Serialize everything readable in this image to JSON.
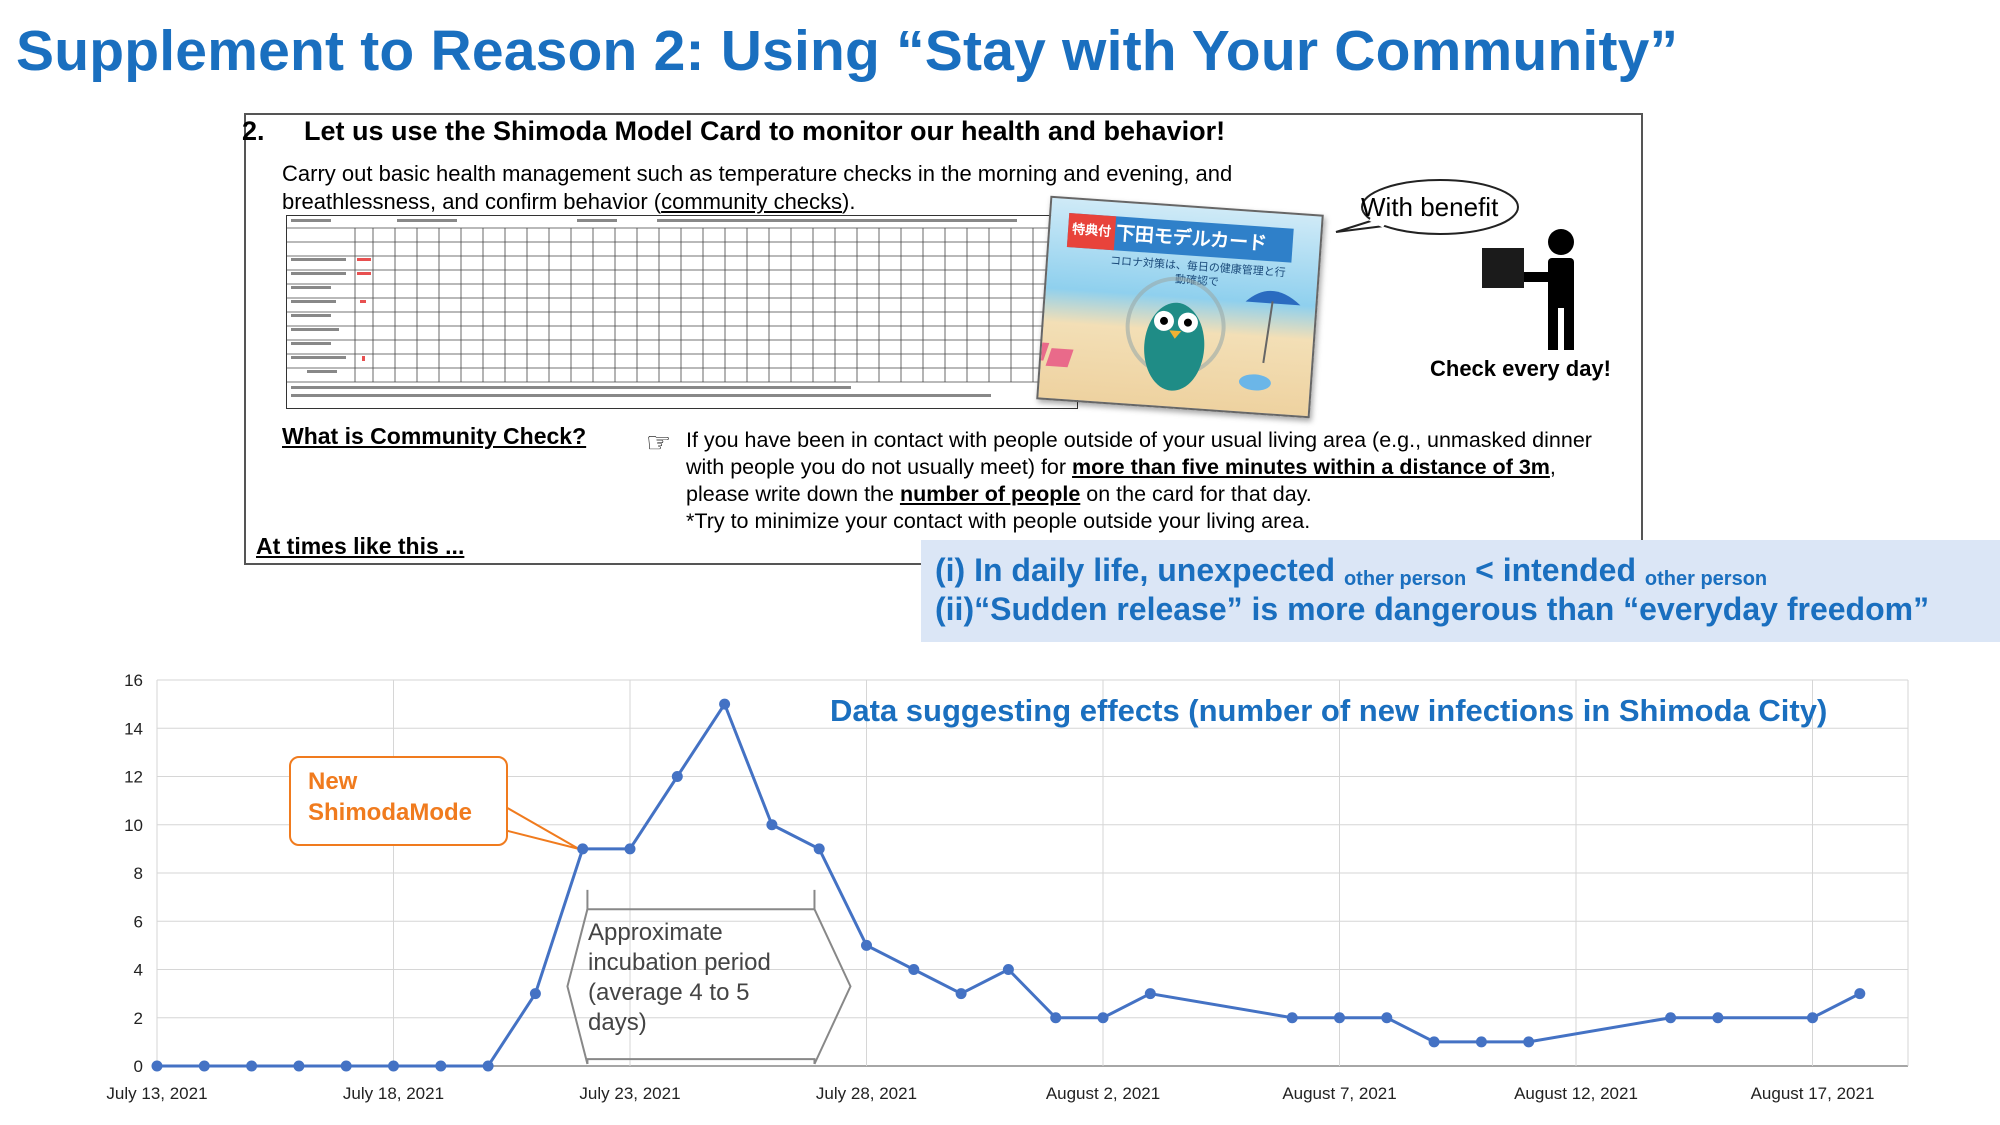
{
  "title": "Supplement to Reason 2: Using “Stay with Your Community”",
  "panel": {
    "heading_num": "2.",
    "heading": "Let us use the Shimoda Model Card to monitor our health and behavior!",
    "intro_part1": "Carry out basic health management such as temperature checks in the morning and evening, and breathlessness, and confirm behavior (",
    "intro_link": "community checks",
    "intro_part2": ").",
    "card_badge": "特典付",
    "card_title": "下田モデルカード",
    "card_sub": "コロナ対策は、毎日の健康管理と行動確認で",
    "bubble": "With benefit",
    "check_label": "Check every day!",
    "what_label": "What is Community Check?",
    "hand_icon": "pointing-hand-icon",
    "explain_1": "If you have been in contact with people outside of your usual living area (e.g., unmasked dinner with people you do not usually meet) for ",
    "explain_b1": "more than five minutes within a distance of 3m",
    "explain_2": ", please write down the ",
    "explain_b2": "number of people",
    "explain_3": " on the card for that day.",
    "explain_4": "*Try to minimize your contact with people outside your living area.",
    "times_label": "At times like this ..."
  },
  "notes": {
    "n1_a": "(i) In daily life, unexpected ",
    "n1_sub1": "other person",
    "n1_b": " < intended ",
    "n1_sub2": "other person",
    "n2": "(ii)“Sudden release” is more dangerous than “everyday freedom”"
  },
  "callout": "New ShimodaMode",
  "incubation": "Approximate incubation period (average 4 to 5 days)",
  "colors": {
    "accent": "#1a6fbf",
    "series": "#4472c4",
    "callout": "#f07b1e",
    "notes_bg": "#dbe6f6"
  },
  "chart_data": {
    "type": "line",
    "title": "Data suggesting effects (number of new infections in Shimoda City)",
    "xlabel": "",
    "ylabel": "",
    "ylim": [
      0,
      16
    ],
    "yticks": [
      0,
      2,
      4,
      6,
      8,
      10,
      12,
      14,
      16
    ],
    "grid": true,
    "x_tick_labels": [
      "July 13, 2021",
      "July 18, 2021",
      "July 23, 2021",
      "July 28, 2021",
      "August 2, 2021",
      "August 7, 2021",
      "August 12, 2021",
      "August 17, 2021"
    ],
    "series": [
      {
        "points": [
          [
            "2021-07-13",
            0
          ],
          [
            "2021-07-14",
            0
          ],
          [
            "2021-07-15",
            0
          ],
          [
            "2021-07-16",
            0
          ],
          [
            "2021-07-17",
            0
          ],
          [
            "2021-07-18",
            0
          ],
          [
            "2021-07-19",
            0
          ],
          [
            "2021-07-20",
            0
          ],
          [
            "2021-07-21",
            3
          ],
          [
            "2021-07-22",
            9
          ],
          [
            "2021-07-23",
            9
          ],
          [
            "2021-07-24",
            12
          ],
          [
            "2021-07-25",
            15
          ],
          [
            "2021-07-26",
            10
          ],
          [
            "2021-07-27",
            9
          ],
          [
            "2021-07-28",
            5
          ],
          [
            "2021-07-29",
            4
          ],
          [
            "2021-07-30",
            3
          ],
          [
            "2021-07-31",
            4
          ],
          [
            "2021-08-01",
            2
          ],
          [
            "2021-08-02",
            2
          ],
          [
            "2021-08-03",
            3
          ],
          [
            "2021-08-06",
            2
          ],
          [
            "2021-08-07",
            2
          ],
          [
            "2021-08-08",
            2
          ],
          [
            "2021-08-09",
            1
          ],
          [
            "2021-08-10",
            1
          ],
          [
            "2021-08-11",
            1
          ],
          [
            "2021-08-14",
            2
          ],
          [
            "2021-08-15",
            2
          ],
          [
            "2021-08-17",
            2
          ],
          [
            "2021-08-18",
            3
          ]
        ]
      }
    ]
  }
}
